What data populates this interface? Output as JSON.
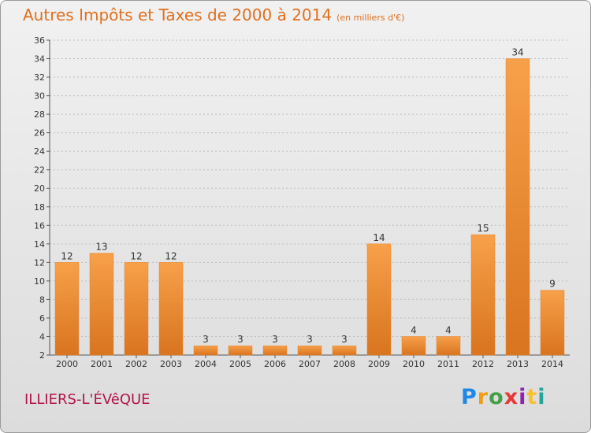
{
  "header": {
    "title": "Autres Impôts et Taxes de 2000 à 2014",
    "subtitle": "(en milliers d'€)"
  },
  "footer": {
    "commune": "ILLIERS-L'ÉVêQUE",
    "logo_letters": [
      "P",
      "r",
      "o",
      "x",
      "i",
      "t",
      "i"
    ]
  },
  "colors": {
    "bar": "#f0902a",
    "title": "#e0701f",
    "commune": "#b0144a"
  },
  "chart_data": {
    "type": "bar",
    "title": "Autres Impôts et Taxes de 2000 à 2014",
    "subtitle": "(en milliers d'€)",
    "xlabel": "",
    "ylabel": "",
    "categories": [
      "2000",
      "2001",
      "2002",
      "2003",
      "2004",
      "2005",
      "2006",
      "2007",
      "2008",
      "2009",
      "2010",
      "2011",
      "2012",
      "2013",
      "2014"
    ],
    "values": [
      12,
      13,
      12,
      12,
      3,
      3,
      3,
      3,
      3,
      14,
      4,
      4,
      15,
      34,
      9
    ],
    "ylim": [
      2,
      36
    ],
    "yticks": [
      2,
      4,
      6,
      8,
      10,
      12,
      14,
      16,
      18,
      20,
      22,
      24,
      26,
      28,
      30,
      32,
      34,
      36
    ],
    "grid": "horizontal dotted",
    "legend": "none"
  }
}
